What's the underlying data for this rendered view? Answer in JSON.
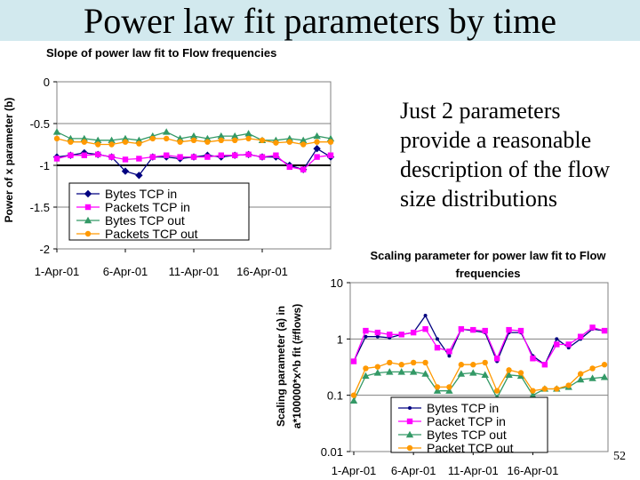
{
  "slide": {
    "title": "Power law fit parameters by time",
    "callout": "Just 2 parameters provide a reasonable description of the flow size distributions",
    "page_number": "52"
  },
  "chart_data": [
    {
      "type": "line",
      "title": "Slope of power law fit to Flow frequencies",
      "ylabel": "Power of x parameter (b)",
      "xlabel": "",
      "x_tick_labels": [
        "1-Apr-01",
        "6-Apr-01",
        "11-Apr-01",
        "16-Apr-01"
      ],
      "y_ticks": [
        "0",
        "-0.5",
        "-1",
        "-1.5",
        "-2"
      ],
      "ylim": [
        -2,
        0
      ],
      "y_scale": "linear",
      "grid": "horizontal",
      "legend": "bottom-left",
      "x": [
        1,
        2,
        3,
        4,
        5,
        6,
        7,
        8,
        9,
        10,
        11,
        12,
        13,
        14,
        15,
        16,
        17,
        18,
        19,
        20,
        21
      ],
      "series": [
        {
          "name": "Bytes TCP in",
          "color": "#000080",
          "marker": "diamond",
          "values": [
            -0.9,
            -0.88,
            -0.85,
            -0.87,
            -0.9,
            -1.07,
            -1.12,
            -0.9,
            -0.9,
            -0.92,
            -0.9,
            -0.88,
            -0.9,
            -0.88,
            -0.87,
            -0.9,
            -0.9,
            -1.0,
            -1.05,
            -0.8,
            -0.9
          ]
        },
        {
          "name": "Packets TCP in",
          "color": "#ff00ff",
          "marker": "square",
          "values": [
            -0.92,
            -0.88,
            -0.88,
            -0.87,
            -0.9,
            -0.93,
            -0.92,
            -0.9,
            -0.88,
            -0.9,
            -0.9,
            -0.9,
            -0.88,
            -0.88,
            -0.87,
            -0.9,
            -0.88,
            -1.02,
            -1.05,
            -0.9,
            -0.88
          ]
        },
        {
          "name": "Bytes TCP out",
          "color": "#339966",
          "marker": "triangle",
          "values": [
            -0.6,
            -0.68,
            -0.68,
            -0.7,
            -0.7,
            -0.68,
            -0.7,
            -0.65,
            -0.6,
            -0.68,
            -0.65,
            -0.68,
            -0.65,
            -0.65,
            -0.62,
            -0.7,
            -0.7,
            -0.68,
            -0.7,
            -0.65,
            -0.68
          ]
        },
        {
          "name": "Packets TCP out",
          "color": "#ff9900",
          "marker": "circle",
          "values": [
            -0.68,
            -0.72,
            -0.72,
            -0.75,
            -0.75,
            -0.72,
            -0.74,
            -0.68,
            -0.68,
            -0.72,
            -0.7,
            -0.72,
            -0.7,
            -0.7,
            -0.68,
            -0.7,
            -0.73,
            -0.72,
            -0.75,
            -0.72,
            -0.72
          ]
        }
      ]
    },
    {
      "type": "line",
      "title": "Scaling parameter for power law fit to Flow frequencies",
      "ylabel": "Scaling parameter (a) in a*100000*x^b fit (#flows)",
      "xlabel": "",
      "x_tick_labels": [
        "1-Apr-01",
        "6-Apr-01",
        "11-Apr-01",
        "16-Apr-01"
      ],
      "y_ticks": [
        "10",
        "1",
        "0.1",
        "0.01"
      ],
      "ylim": [
        0.01,
        10
      ],
      "y_scale": "log",
      "grid": "horizontal",
      "legend": "bottom-center",
      "x": [
        1,
        2,
        3,
        4,
        5,
        6,
        7,
        8,
        9,
        10,
        11,
        12,
        13,
        14,
        15,
        16,
        17,
        18,
        19,
        20,
        21,
        22
      ],
      "series": [
        {
          "name": "Bytes TCP in",
          "color": "#000080",
          "marker": "dot",
          "values": [
            0.4,
            1.1,
            1.1,
            1.05,
            1.2,
            1.3,
            2.6,
            1.0,
            0.5,
            1.5,
            1.4,
            1.3,
            0.4,
            1.3,
            1.3,
            0.5,
            0.35,
            1.0,
            0.7,
            1.0,
            1.5,
            1.4
          ]
        },
        {
          "name": "Packet TCP in",
          "color": "#ff00ff",
          "marker": "square",
          "values": [
            0.4,
            1.4,
            1.3,
            1.2,
            1.2,
            1.3,
            1.5,
            0.7,
            0.6,
            1.5,
            1.45,
            1.4,
            0.45,
            1.45,
            1.4,
            0.45,
            0.35,
            0.8,
            0.8,
            1.1,
            1.6,
            1.4
          ]
        },
        {
          "name": "Bytes TCP out",
          "color": "#339966",
          "marker": "triangle",
          "values": [
            0.08,
            0.22,
            0.25,
            0.26,
            0.26,
            0.26,
            0.24,
            0.12,
            0.12,
            0.24,
            0.25,
            0.23,
            0.09,
            0.23,
            0.22,
            0.1,
            0.13,
            0.13,
            0.14,
            0.19,
            0.2,
            0.21
          ]
        },
        {
          "name": "Packet TCP out",
          "color": "#ff9900",
          "marker": "circle",
          "values": [
            0.1,
            0.3,
            0.32,
            0.38,
            0.35,
            0.38,
            0.38,
            0.14,
            0.14,
            0.35,
            0.35,
            0.38,
            0.12,
            0.28,
            0.25,
            0.12,
            0.13,
            0.13,
            0.15,
            0.24,
            0.3,
            0.35
          ]
        }
      ]
    }
  ]
}
